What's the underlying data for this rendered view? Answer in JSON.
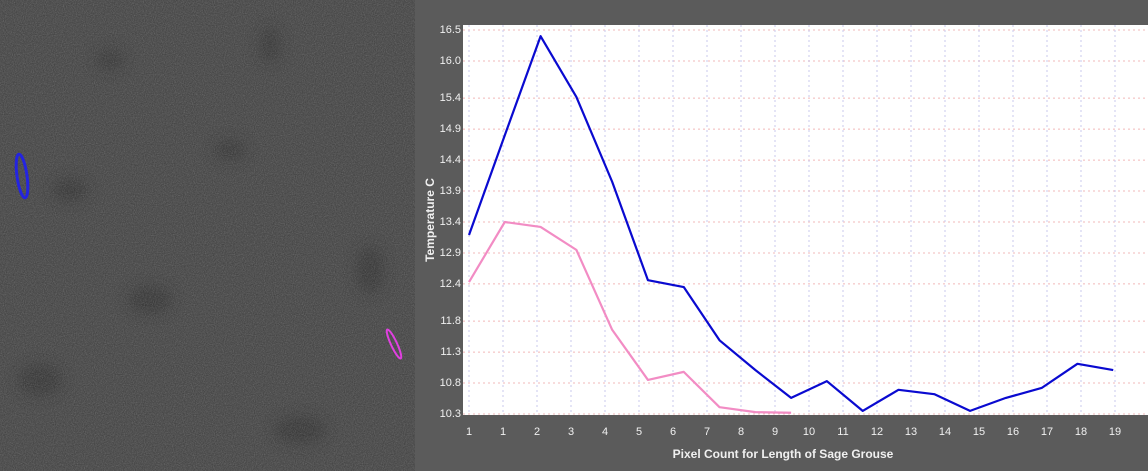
{
  "chart_data": {
    "type": "line",
    "y_label": "Temperature C",
    "x_label": "Pixel Count for Length of Sage Grouse",
    "x": [
      1,
      2,
      3,
      4,
      5,
      6,
      7,
      8,
      9,
      10,
      11,
      12,
      13,
      14,
      15,
      16,
      17,
      18,
      19
    ],
    "series": [
      {
        "color": "#0a0ad0",
        "values": [
          13.19,
          14.8,
          16.4,
          15.42,
          14.05,
          12.46,
          12.35,
          11.49,
          11.01,
          10.56,
          10.83,
          10.35,
          10.69,
          10.62,
          10.35,
          10.56,
          10.72,
          11.11,
          11.01
        ]
      },
      {
        "color": "#f28cc4",
        "values": [
          12.43,
          13.4,
          13.32,
          12.95,
          11.66,
          10.85,
          10.98,
          10.41,
          10.33,
          10.32,
          null,
          null,
          null,
          null,
          null,
          null,
          null,
          null,
          null
        ]
      }
    ],
    "xlim": [
      1,
      20
    ],
    "ylim": [
      10.3,
      16.5
    ],
    "xticks": [
      1,
      {
        "value": 1.95,
        "label": "1"
      },
      {
        "value": 2.9,
        "label": "2"
      },
      {
        "value": 3.85,
        "label": "3"
      },
      {
        "value": 4.8,
        "label": "4"
      },
      {
        "value": 5.75,
        "label": "5"
      },
      {
        "value": 6.7,
        "label": "6"
      },
      {
        "value": 7.65,
        "label": "7"
      },
      {
        "value": 8.6,
        "label": "8"
      },
      {
        "value": 9.55,
        "label": "9"
      },
      {
        "value": 10.5,
        "label": "10"
      },
      {
        "value": 11.45,
        "label": "11"
      },
      {
        "value": 12.4,
        "label": "12"
      },
      {
        "value": 13.35,
        "label": "13"
      },
      {
        "value": 14.3,
        "label": "14"
      },
      {
        "value": 15.25,
        "label": "15"
      },
      {
        "value": 16.2,
        "label": "16"
      },
      {
        "value": 17.15,
        "label": "17"
      },
      {
        "value": 18.1,
        "label": "18"
      },
      {
        "value": 19.05,
        "label": "19"
      }
    ],
    "yticks": [
      10.3,
      10.8,
      11.3,
      11.8,
      12.4,
      12.9,
      13.4,
      13.9,
      14.4,
      14.9,
      15.4,
      {
        "value": 16,
        "label": "16.0"
      },
      16.5
    ],
    "grid": true
  }
}
